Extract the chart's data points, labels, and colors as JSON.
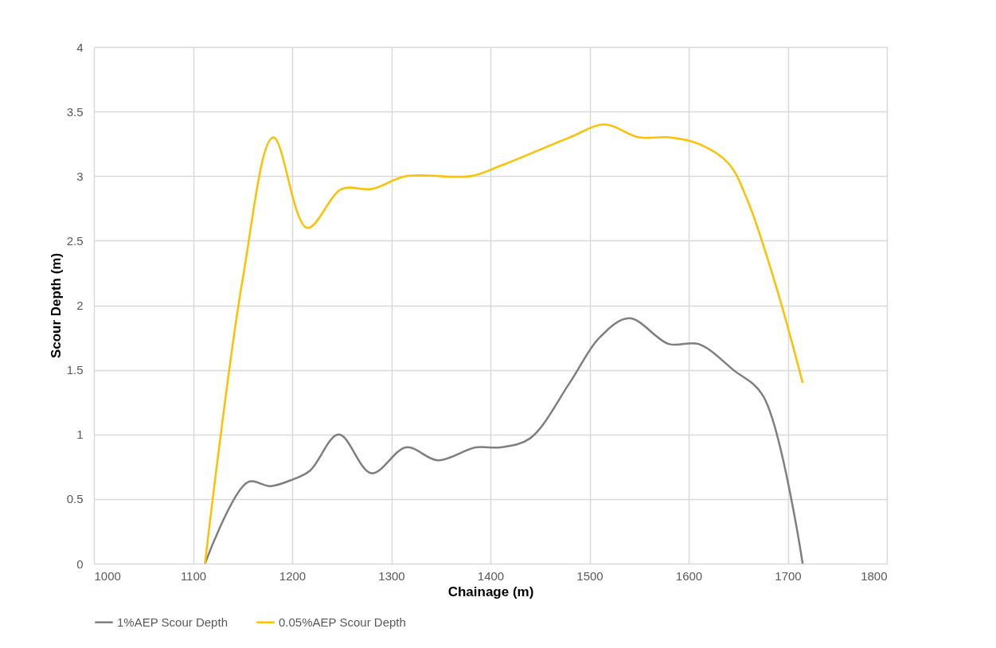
{
  "chart_data": {
    "type": "line",
    "xlabel": "Chainage (m)",
    "ylabel": "Scour Depth (m)",
    "xlim": [
      1000,
      1800
    ],
    "xticks": [
      1000,
      1100,
      1200,
      1300,
      1400,
      1500,
      1600,
      1700,
      1800
    ],
    "ylim": [
      0,
      4
    ],
    "yticks": [
      0,
      0.5,
      1,
      1.5,
      2,
      2.5,
      3,
      3.5,
      4
    ],
    "grid": true,
    "legend": "bottom",
    "marker": "none",
    "line_style": "solid",
    "series": [
      {
        "name": "1%AEP Scour Depth",
        "color": "#7f7f7f",
        "x": [
          1112,
          1155,
          1178,
          1200,
          1218,
          1247,
          1280,
          1315,
          1347,
          1385,
          1410,
          1440,
          1480,
          1510,
          1540,
          1580,
          1610,
          1645,
          1675,
          1715
        ],
        "values": [
          0,
          0.63,
          0.6,
          0.65,
          0.72,
          1.0,
          0.7,
          0.9,
          0.8,
          0.9,
          0.9,
          0.97,
          1.4,
          1.75,
          1.9,
          1.7,
          1.7,
          1.5,
          1.3,
          0
        ]
      },
      {
        "name": "0.05%AEP Scour Depth",
        "color": "#ffc000",
        "x": [
          1112,
          1150,
          1181,
          1215,
          1250,
          1280,
          1315,
          1380,
          1410,
          1480,
          1515,
          1550,
          1580,
          1610,
          1640,
          1660,
          1690,
          1715
        ],
        "values": [
          0,
          2.2,
          3.3,
          2.6,
          2.9,
          2.9,
          3.0,
          3.0,
          3.08,
          3.3,
          3.4,
          3.3,
          3.3,
          3.25,
          3.1,
          2.8,
          2.1,
          1.4
        ]
      }
    ]
  }
}
